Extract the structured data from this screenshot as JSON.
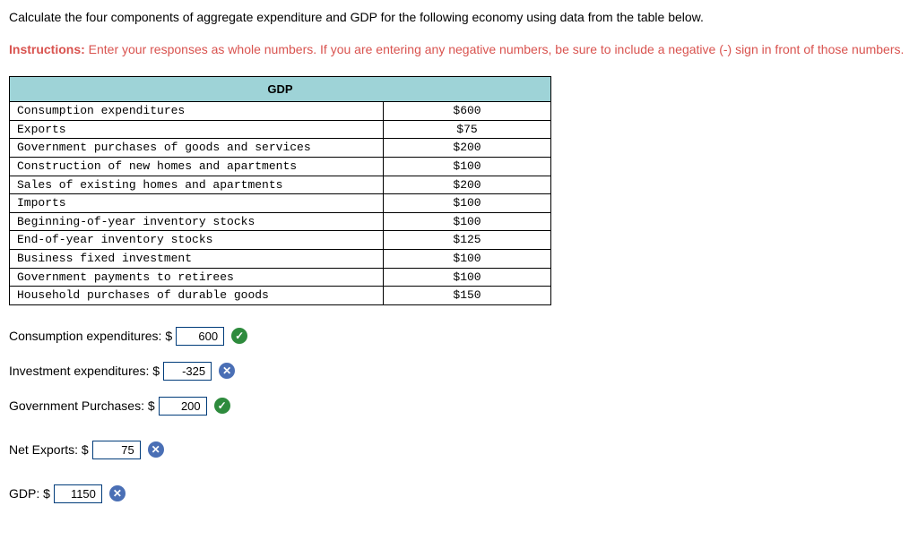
{
  "question": "Calculate the four components of aggregate expenditure and GDP for the following economy using data from the table below.",
  "instructions_label": "Instructions:",
  "instructions_text": " Enter your responses as whole numbers. If you are entering any negative numbers, be sure to include a negative (-) sign in front of those numbers.",
  "table": {
    "header": "GDP",
    "rows": [
      {
        "label": "Consumption expenditures",
        "value": "$600"
      },
      {
        "label": "Exports",
        "value": "$75"
      },
      {
        "label": "Government purchases of goods and services",
        "value": "$200"
      },
      {
        "label": "Construction of new homes and apartments",
        "value": "$100"
      },
      {
        "label": "Sales of existing homes and apartments",
        "value": "$200"
      },
      {
        "label": "Imports",
        "value": "$100"
      },
      {
        "label": "Beginning-of-year inventory stocks",
        "value": "$100"
      },
      {
        "label": "End-of-year inventory stocks",
        "value": "$125"
      },
      {
        "label": "Business fixed investment",
        "value": "$100"
      },
      {
        "label": "Government payments to retirees",
        "value": "$100"
      },
      {
        "label": "Household purchases of durable goods",
        "value": "$150"
      }
    ]
  },
  "answers": [
    {
      "label": "Consumption expenditures: $",
      "value": "600",
      "status": "correct"
    },
    {
      "label": "Investment expenditures: $",
      "value": "-325",
      "status": "incorrect"
    },
    {
      "label": "Government Purchases: $",
      "value": "200",
      "status": "correct"
    },
    {
      "label": "Net Exports: $",
      "value": "75",
      "status": "incorrect"
    },
    {
      "label": "GDP: $",
      "value": "1150",
      "status": "incorrect"
    }
  ],
  "colors": {
    "instructions": "#d9534f",
    "table_header_bg": "#9ed3d7",
    "input_border": "#003c7a",
    "correct_bg": "#2e8b3d",
    "incorrect_bg": "#4a6fb5"
  }
}
